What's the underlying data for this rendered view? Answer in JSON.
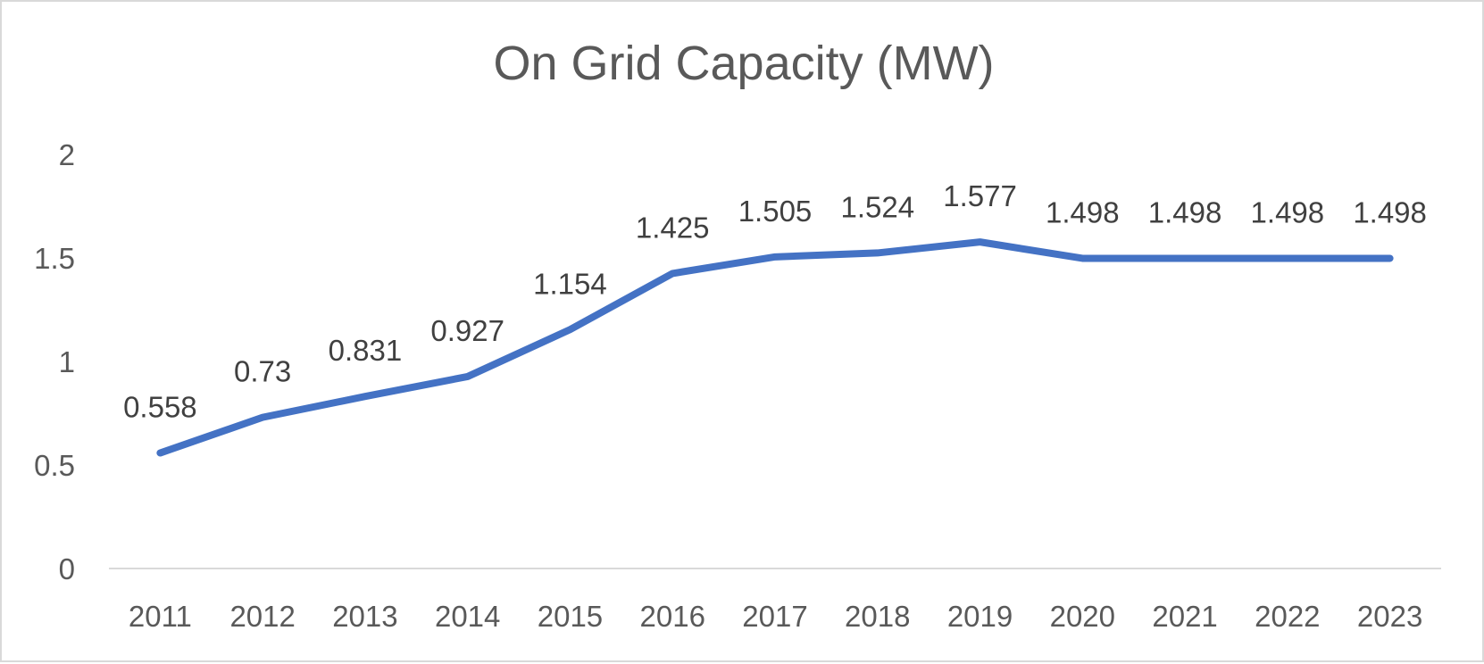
{
  "chart_data": {
    "type": "line",
    "title": "On Grid Capacity (MW)",
    "xlabel": "",
    "ylabel": "",
    "categories": [
      "2011",
      "2012",
      "2013",
      "2014",
      "2015",
      "2016",
      "2017",
      "2018",
      "2019",
      "2020",
      "2021",
      "2022",
      "2023"
    ],
    "series": [
      {
        "values": [
          0.558,
          0.73,
          0.831,
          0.927,
          1.154,
          1.425,
          1.505,
          1.524,
          1.577,
          1.498,
          1.498,
          1.498,
          1.498
        ],
        "labels": [
          "0.558",
          "0.73",
          "0.831",
          "0.927",
          "1.154",
          "1.425",
          "1.505",
          "1.524",
          "1.577",
          "1.498",
          "1.498",
          "1.498",
          "1.498"
        ],
        "color": "#4472c4"
      }
    ],
    "ylim": [
      0,
      2
    ],
    "yticks": [
      "0",
      "0.5",
      "1",
      "1.5",
      "2"
    ],
    "grid": false,
    "legend": "none"
  },
  "colors": {
    "line": "#4472c4",
    "axis": "#d9d9d9",
    "text": "#595959",
    "label": "#404040"
  }
}
